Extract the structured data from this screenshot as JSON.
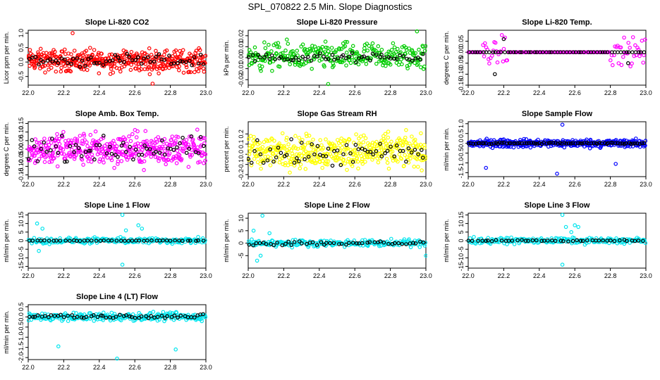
{
  "title": "SPL_070822  2.5 Min. Slope Diagnostics",
  "colors": {
    "background": "#ffffff",
    "axis": "#000000",
    "overlay": "#000000",
    "red": "#ff0000",
    "green": "#00cc00",
    "magenta": "#ff00ff",
    "yellow": "#ffff00",
    "blue": "#0000ff",
    "cyan": "#00e5ee"
  },
  "chart_data": [
    {
      "type": "scatter",
      "title": "Slope Li-820 CO2",
      "ylabel": "Licor ppm per min.",
      "xlim": [
        22.0,
        23.0
      ],
      "xticks": [
        "22.0",
        "22.2",
        "22.4",
        "22.6",
        "22.8",
        "23.0"
      ],
      "ylim": [
        -0.8,
        1.1
      ],
      "yticks": [
        "-0.5",
        "0.0",
        "0.5",
        "1.0"
      ],
      "series": [
        {
          "color": "red",
          "n": 420,
          "center": 0.05,
          "spread": 0.55,
          "outliers": [
            [
              22.25,
              1.0
            ],
            [
              22.7,
              -0.75
            ]
          ]
        },
        {
          "color": "overlay",
          "n": 60,
          "center": 0.05,
          "spread": 0.3,
          "outliers": []
        }
      ]
    },
    {
      "type": "scatter",
      "title": "Slope Li-820 Pressure",
      "ylabel": "kPa per min.",
      "xlim": [
        22.0,
        23.0
      ],
      "xticks": [
        "22.0",
        "22.2",
        "22.4",
        "22.6",
        "22.8",
        "23.0"
      ],
      "ylim": [
        -0.025,
        0.025
      ],
      "yticks": [
        "-0.02",
        "-0.01",
        "0.00",
        "0.01",
        "0.02"
      ],
      "series": [
        {
          "color": "green",
          "n": 300,
          "center": 0.001,
          "spread": 0.018,
          "outliers": [
            [
              22.45,
              -0.024
            ],
            [
              22.95,
              0.024
            ]
          ]
        },
        {
          "color": "overlay",
          "n": 60,
          "center": 0.0,
          "spread": 0.006,
          "outliers": []
        }
      ]
    },
    {
      "type": "scatter",
      "title": "Slope Li-820 Temp.",
      "ylabel": "degrees C per min.",
      "xlim": [
        22.0,
        23.0
      ],
      "xticks": [
        "22.0",
        "22.2",
        "22.4",
        "22.6",
        "22.8",
        "23.0"
      ],
      "ylim": [
        -0.15,
        0.1
      ],
      "yticks": [
        "-0.15",
        "-0.10",
        "-0.05",
        "0.00",
        "0.05"
      ],
      "series": [
        {
          "color": "magenta",
          "n": 160,
          "center": 0.0,
          "spread": 0.09,
          "outliers": [],
          "active_ranges": [
            [
              22.08,
              22.22
            ],
            [
              22.8,
              23.0
            ]
          ]
        },
        {
          "color": "overlay",
          "n": 60,
          "center": 0.0,
          "spread": 0.0,
          "outliers": [
            [
              22.15,
              -0.1
            ],
            [
              22.2,
              0.06
            ],
            [
              22.9,
              -0.05
            ]
          ]
        }
      ]
    },
    {
      "type": "scatter",
      "title": "Slope Amb. Box Temp.",
      "ylabel": "degrees C per min.",
      "xlim": [
        22.0,
        23.0
      ],
      "xticks": [
        "22.0",
        "22.2",
        "22.4",
        "22.6",
        "22.8",
        "23.0"
      ],
      "ylim": [
        -0.16,
        0.16
      ],
      "yticks": [
        "-0.15",
        "-0.10",
        "-0.05",
        "0.00",
        "0.05",
        "0.10",
        "0.15"
      ],
      "series": [
        {
          "color": "magenta",
          "n": 420,
          "center": 0.0,
          "spread": 0.14,
          "outliers": []
        },
        {
          "color": "overlay",
          "n": 60,
          "center": 0.0,
          "spread": 0.1,
          "outliers": []
        }
      ]
    },
    {
      "type": "scatter",
      "title": "Slope Gas Stream RH",
      "ylabel": "percent per min.",
      "xlim": [
        22.0,
        23.0
      ],
      "xticks": [
        "22.0",
        "22.2",
        "22.4",
        "22.6",
        "22.8",
        "23.0"
      ],
      "ylim": [
        -0.22,
        0.32
      ],
      "yticks": [
        "-0.2",
        "-0.1",
        "0.0",
        "0.1",
        "0.2"
      ],
      "series": [
        {
          "color": "yellow",
          "n": 420,
          "center": 0.03,
          "spread": 0.24,
          "outliers": []
        },
        {
          "color": "overlay",
          "n": 60,
          "center": 0.0,
          "spread": 0.18,
          "outliers": []
        }
      ]
    },
    {
      "type": "scatter",
      "title": "Slope Sample Flow",
      "ylabel": "ml/min per min.",
      "xlim": [
        22.0,
        23.0
      ],
      "xticks": [
        "22.0",
        "22.2",
        "22.4",
        "22.6",
        "22.8",
        "23.0"
      ],
      "ylim": [
        -1.7,
        1.1
      ],
      "yticks": [
        "-1.5",
        "-1.0",
        "-0.5",
        "0.0",
        "0.5",
        "1.0"
      ],
      "series": [
        {
          "color": "blue",
          "n": 380,
          "center": 0.0,
          "spread": 0.3,
          "outliers": [
            [
              22.1,
              -1.25
            ],
            [
              22.53,
              0.95
            ],
            [
              22.5,
              -1.55
            ],
            [
              22.83,
              -1.05
            ]
          ]
        },
        {
          "color": "overlay",
          "n": 80,
          "center": 0.0,
          "spread": 0.06,
          "outliers": []
        }
      ]
    },
    {
      "type": "scatter",
      "title": "Slope Line 1 Flow",
      "ylabel": "ml/min per min.",
      "xlim": [
        22.0,
        23.0
      ],
      "xticks": [
        "22.0",
        "22.2",
        "22.4",
        "22.6",
        "22.8",
        "23.0"
      ],
      "ylim": [
        -16,
        16
      ],
      "yticks": [
        "-15",
        "-10",
        "-5",
        "0",
        "5",
        "10",
        "15"
      ],
      "series": [
        {
          "color": "cyan",
          "n": 220,
          "center": 0.0,
          "spread": 2.5,
          "outliers": [
            [
              22.05,
              10
            ],
            [
              22.08,
              7
            ],
            [
              22.06,
              -6
            ],
            [
              22.53,
              15
            ],
            [
              22.55,
              6
            ],
            [
              22.53,
              -14
            ],
            [
              22.62,
              9
            ],
            [
              22.64,
              7
            ]
          ]
        },
        {
          "color": "overlay",
          "n": 45,
          "center": 0.0,
          "spread": 0.3,
          "outliers": []
        }
      ]
    },
    {
      "type": "scatter",
      "title": "Slope Line 2 Flow",
      "ylabel": "ml/min per min.",
      "xlim": [
        22.0,
        23.0
      ],
      "xticks": [
        "22.0",
        "22.2",
        "22.4",
        "22.6",
        "22.8",
        "23.0"
      ],
      "ylim": [
        -10,
        12
      ],
      "yticks": [
        "-5",
        "0",
        "5",
        "10"
      ],
      "series": [
        {
          "color": "cyan",
          "n": 220,
          "center": 0.0,
          "spread": 2.0,
          "outliers": [
            [
              22.08,
              11
            ],
            [
              22.03,
              5
            ],
            [
              22.05,
              -7
            ],
            [
              22.07,
              -5
            ],
            [
              22.12,
              4
            ],
            [
              23.0,
              -5
            ]
          ]
        },
        {
          "color": "overlay",
          "n": 50,
          "center": 0.0,
          "spread": 1.6,
          "outliers": []
        }
      ]
    },
    {
      "type": "scatter",
      "title": "Slope Line 3 Flow",
      "ylabel": "ml/min per min.",
      "xlim": [
        22.0,
        23.0
      ],
      "xticks": [
        "22.0",
        "22.2",
        "22.4",
        "22.6",
        "22.8",
        "23.0"
      ],
      "ylim": [
        -16,
        16
      ],
      "yticks": [
        "-15",
        "-10",
        "-5",
        "0",
        "5",
        "10",
        "15"
      ],
      "series": [
        {
          "color": "cyan",
          "n": 220,
          "center": 0.0,
          "spread": 2.5,
          "outliers": [
            [
              22.53,
              15
            ],
            [
              22.55,
              8
            ],
            [
              22.53,
              -14
            ],
            [
              22.6,
              9
            ],
            [
              22.62,
              8
            ],
            [
              22.58,
              5
            ]
          ]
        },
        {
          "color": "overlay",
          "n": 45,
          "center": 0.0,
          "spread": 0.5,
          "outliers": []
        }
      ]
    },
    {
      "type": "scatter",
      "title": "Slope Line 4 (LT) Flow",
      "ylabel": "ml/min per min.",
      "xlim": [
        22.0,
        23.0
      ],
      "xticks": [
        "22.0",
        "22.2",
        "22.4",
        "22.6",
        "22.8",
        "23.0"
      ],
      "ylim": [
        -2.1,
        0.6
      ],
      "yticks": [
        "-2.0",
        "-1.5",
        "-1.0",
        "-0.5",
        "0.0",
        "0.5"
      ],
      "series": [
        {
          "color": "cyan",
          "n": 260,
          "center": 0.0,
          "spread": 0.3,
          "outliers": [
            [
              22.17,
              -1.45
            ],
            [
              22.5,
              -2.05
            ],
            [
              22.83,
              -1.6
            ]
          ]
        },
        {
          "color": "overlay",
          "n": 55,
          "center": 0.03,
          "spread": 0.15,
          "outliers": []
        }
      ]
    }
  ]
}
